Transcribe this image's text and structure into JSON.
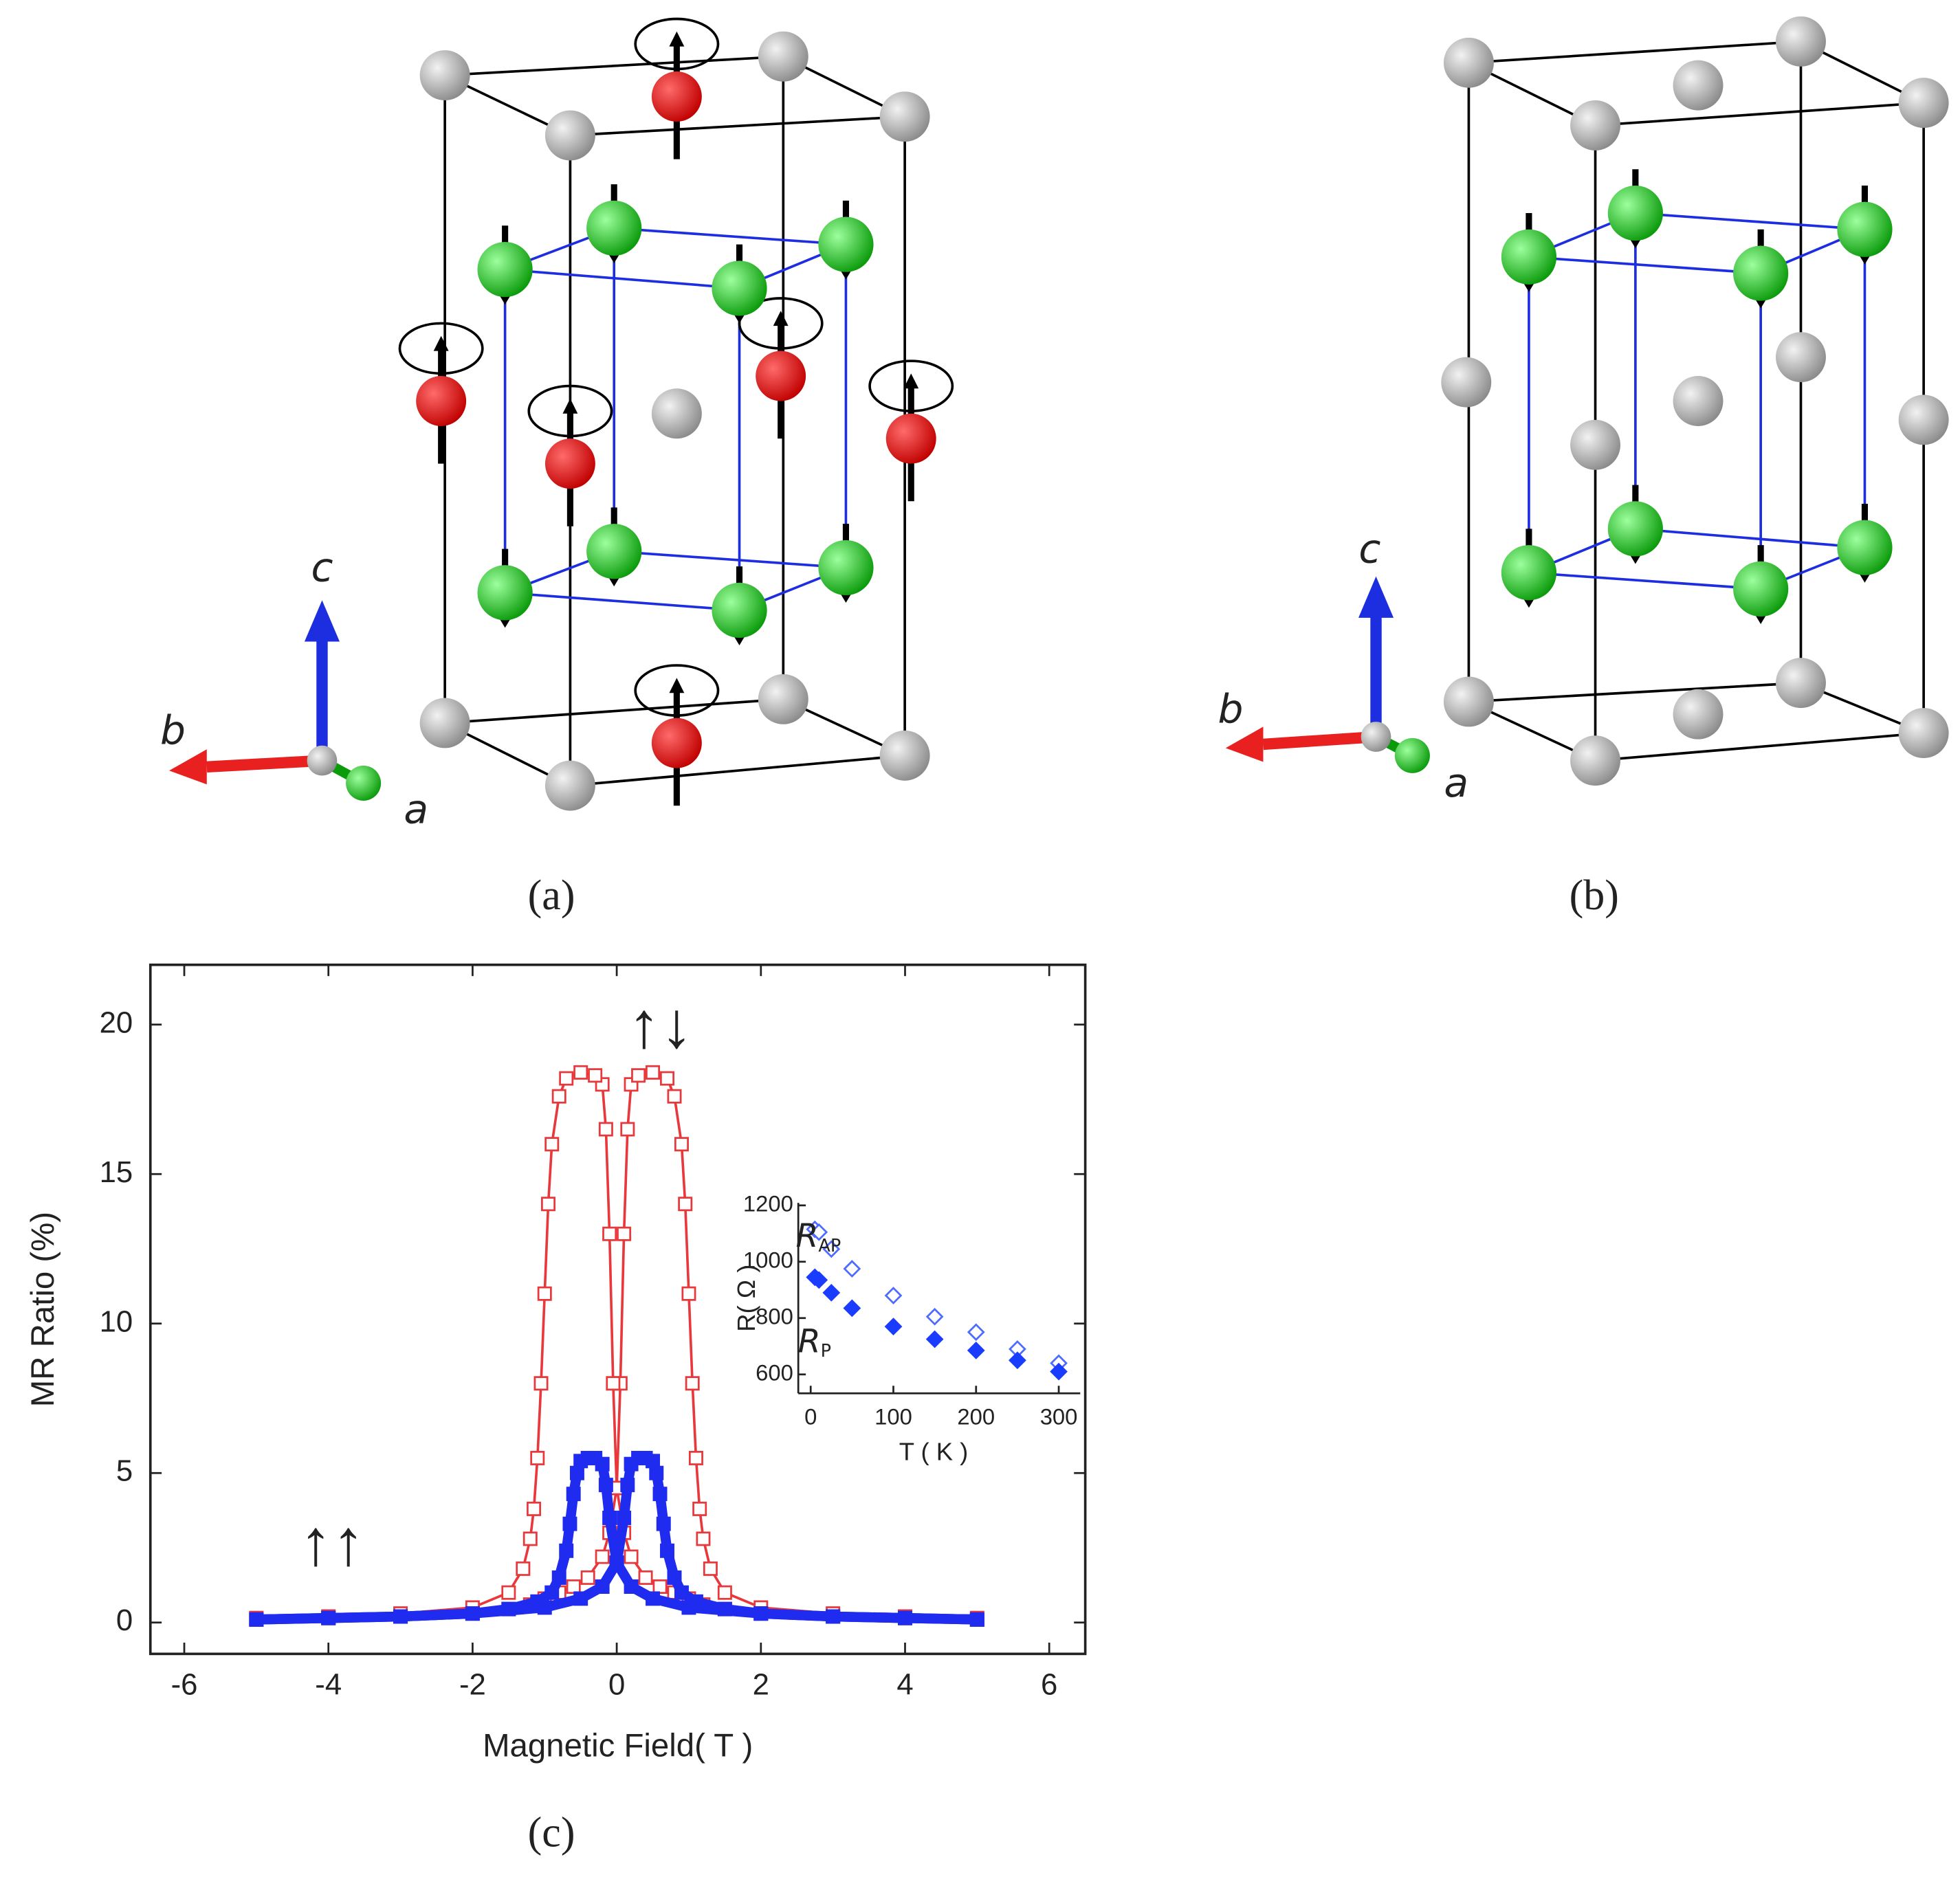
{
  "panels": [
    {
      "label": "(a)",
      "axes": [
        "c",
        "b",
        "a"
      ]
    },
    {
      "label": "(b)",
      "axes": [
        "c",
        "b",
        "a"
      ]
    },
    {
      "label": "(c)"
    }
  ],
  "chart_data": [
    {
      "type": "line",
      "xlabel": "Magnetic Field( T )",
      "ylabel": "MR Ratio (%)",
      "xlim": [
        -6.47,
        6.5
      ],
      "ylim": [
        -1.05,
        22
      ],
      "xticks": [
        -6,
        -4,
        -2,
        0,
        2,
        4,
        6
      ],
      "yticks": [
        0,
        5,
        10,
        15,
        20
      ],
      "annotations": [
        {
          "text": "↑↑"
        },
        {
          "text": "↑↓"
        }
      ],
      "series": [
        {
          "color": "#e8383b",
          "marker": "open-square",
          "x": [
            -5,
            -4,
            -3,
            -2,
            -1.5,
            -1.2,
            -1,
            -0.8,
            -0.6,
            -0.4,
            -0.2,
            -0.1,
            0,
            0.05,
            0.1,
            0.15,
            0.2,
            0.3,
            0.5,
            0.7,
            0.8,
            0.9,
            0.95,
            1,
            1.05,
            1.1,
            1.15,
            1.2,
            1.3,
            1.5,
            2,
            3,
            4,
            5
          ],
          "values": [
            0.1,
            0.15,
            0.2,
            0.3,
            0.45,
            0.6,
            0.8,
            1,
            1.2,
            1.5,
            2.2,
            3,
            4.5,
            8,
            13,
            16.5,
            18,
            18.3,
            18.4,
            18.2,
            17.6,
            16,
            14,
            11,
            8,
            5.5,
            3.8,
            2.8,
            1.8,
            1,
            0.5,
            0.3,
            0.2,
            0.15
          ]
        },
        {
          "color": "#e8383b",
          "marker": "open-square",
          "x": [
            5,
            4,
            3,
            2,
            1.5,
            1.2,
            1,
            0.8,
            0.6,
            0.4,
            0.2,
            0.1,
            0,
            -0.05,
            -0.1,
            -0.15,
            -0.2,
            -0.3,
            -0.5,
            -0.7,
            -0.8,
            -0.9,
            -0.95,
            -1,
            -1.05,
            -1.1,
            -1.15,
            -1.2,
            -1.3,
            -1.5,
            -2,
            -3,
            -4,
            -5
          ],
          "values": [
            0.1,
            0.15,
            0.2,
            0.3,
            0.45,
            0.6,
            0.8,
            1,
            1.2,
            1.5,
            2.2,
            3,
            4.5,
            8,
            13,
            16.5,
            18,
            18.3,
            18.4,
            18.2,
            17.6,
            16,
            14,
            11,
            8,
            5.5,
            3.8,
            2.8,
            1.8,
            1,
            0.5,
            0.3,
            0.2,
            0.15
          ]
        },
        {
          "color": "#1f2cf0",
          "marker": "filled-square",
          "x": [
            -5,
            -4,
            -3,
            -2,
            -1,
            -0.5,
            -0.2,
            0,
            0.1,
            0.15,
            0.2,
            0.3,
            0.4,
            0.5,
            0.55,
            0.6,
            0.65,
            0.7,
            0.8,
            0.9,
            1.1,
            1.5,
            2,
            3,
            4,
            5
          ],
          "values": [
            0.1,
            0.15,
            0.2,
            0.3,
            0.5,
            0.8,
            1.2,
            2,
            3.5,
            4.6,
            5.3,
            5.5,
            5.5,
            5.4,
            5,
            4.3,
            3.3,
            2.4,
            1.5,
            1,
            0.7,
            0.45,
            0.3,
            0.2,
            0.15,
            0.1
          ]
        },
        {
          "color": "#1f2cf0",
          "marker": "filled-square",
          "x": [
            5,
            4,
            3,
            2,
            1,
            0.5,
            0.2,
            0,
            -0.1,
            -0.15,
            -0.2,
            -0.3,
            -0.4,
            -0.5,
            -0.55,
            -0.6,
            -0.65,
            -0.7,
            -0.8,
            -0.9,
            -1.1,
            -1.5,
            -2,
            -3,
            -4,
            -5
          ],
          "values": [
            0.1,
            0.15,
            0.2,
            0.3,
            0.5,
            0.8,
            1.2,
            2,
            3.5,
            4.6,
            5.3,
            5.5,
            5.5,
            5.4,
            5,
            4.3,
            3.3,
            2.4,
            1.5,
            1,
            0.7,
            0.45,
            0.3,
            0.2,
            0.15,
            0.1
          ]
        }
      ]
    },
    {
      "type": "scatter",
      "xlabel": "T ( K )",
      "ylabel": "R( Ω )",
      "xlim": [
        -15,
        326
      ],
      "ylim": [
        533,
        1209
      ],
      "xticks": [
        0,
        100,
        200,
        300
      ],
      "yticks": [
        600,
        800,
        1000,
        1200
      ],
      "annotations": [
        {
          "text": "R",
          "sub": "AP"
        },
        {
          "text": "R",
          "sub": "P"
        }
      ],
      "series": [
        {
          "color": "#4d6bff",
          "marker": "open-diamond",
          "x": [
            5,
            10,
            25,
            50,
            100,
            150,
            200,
            250,
            300
          ],
          "values": [
            1115,
            1105,
            1045,
            975,
            880,
            805,
            750,
            690,
            640
          ]
        },
        {
          "color": "#1a3cff",
          "marker": "filled-diamond",
          "x": [
            5,
            10,
            25,
            50,
            100,
            150,
            200,
            250,
            300
          ],
          "values": [
            945,
            935,
            890,
            835,
            770,
            725,
            685,
            650,
            610
          ]
        }
      ]
    }
  ]
}
